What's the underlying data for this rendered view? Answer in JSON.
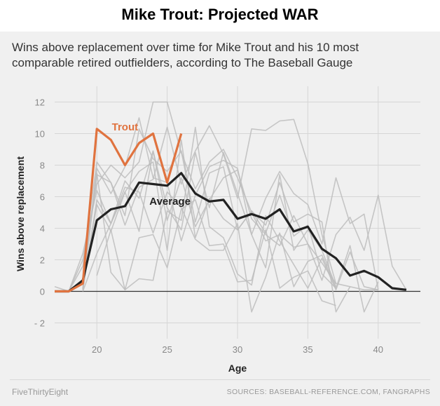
{
  "page": {
    "title": "Mike Trout: Projected WAR"
  },
  "chart_data": {
    "type": "line",
    "subtitle_lines": [
      "Wins above replacement over time for Mike Trout and his 10 most",
      "comparable retired outfielders, according to The Baseball Gauge"
    ],
    "xlabel": "Age",
    "ylabel": "Wins above replacement",
    "xlim": [
      17,
      43
    ],
    "ylim": [
      -3,
      13
    ],
    "x_ticks": [
      20,
      25,
      30,
      35,
      40
    ],
    "y_ticks": [
      -2,
      0,
      2,
      4,
      6,
      8,
      10,
      12
    ],
    "y_tick_labels": [
      "- 2",
      "0",
      "2",
      "4",
      "6",
      "8",
      "10",
      "12"
    ],
    "grid": true,
    "colors": {
      "trout": "#e0733f",
      "average": "#222222",
      "comparables": "#bdbdbd",
      "zero_line": "#333333",
      "grid": "#d6d6d6"
    },
    "series": [
      {
        "name": "Trout",
        "label": "Trout",
        "label_at": [
          22,
          10.2
        ],
        "x": [
          17,
          18,
          19,
          20,
          21,
          22,
          23,
          24,
          25,
          26
        ],
        "y": [
          0,
          0,
          0.5,
          10.3,
          9.6,
          8.0,
          9.4,
          10.0,
          6.9,
          10.0
        ]
      },
      {
        "name": "Average",
        "label": "Average",
        "label_at": [
          25.2,
          5.5
        ],
        "x": [
          17,
          18,
          19,
          20,
          21,
          22,
          23,
          24,
          25,
          26,
          27,
          28,
          29,
          30,
          31,
          32,
          33,
          34,
          35,
          36,
          37,
          38,
          39,
          40,
          41,
          42
        ],
        "y": [
          0,
          0,
          0.7,
          4.5,
          5.2,
          5.4,
          6.9,
          6.8,
          6.7,
          7.5,
          6.2,
          5.7,
          5.8,
          4.6,
          4.9,
          4.6,
          5.2,
          3.8,
          4.1,
          2.7,
          2.1,
          1.0,
          1.3,
          0.9,
          0.2,
          0.1
        ]
      },
      {
        "name": "",
        "x": [
          17,
          18,
          19,
          20,
          21,
          22,
          23,
          24,
          25,
          26,
          27,
          28,
          29,
          30,
          31,
          32,
          33,
          34,
          35,
          36,
          37,
          38,
          39,
          40
        ],
        "y": [
          0.3,
          0,
          2.0,
          6.8,
          8.0,
          7.2,
          8.2,
          12.0,
          12.0,
          8.8,
          6.5,
          8.2,
          9.0,
          7.2,
          5.0,
          3.2,
          3.6,
          2.8,
          3.0,
          1.8,
          0.5,
          0.3,
          0.1,
          0.1
        ]
      },
      {
        "name": "",
        "x": [
          18,
          19,
          20,
          21,
          22,
          23,
          24,
          25,
          26,
          27,
          28,
          29,
          30,
          31,
          32,
          33,
          34,
          35,
          36,
          37
        ],
        "y": [
          0,
          1.6,
          8.2,
          6.9,
          4.2,
          6.6,
          7.1,
          10.4,
          6.8,
          8.9,
          10.5,
          8.7,
          5.9,
          10.3,
          10.2,
          10.8,
          10.9,
          8.1,
          3.6,
          0.5
        ]
      },
      {
        "name": "",
        "x": [
          19,
          20,
          21,
          22,
          23,
          24,
          25,
          26,
          27,
          28,
          29,
          30,
          31,
          32,
          33,
          34,
          35,
          36,
          37,
          38,
          39,
          40
        ],
        "y": [
          0.2,
          7.8,
          6.2,
          7.9,
          11.0,
          7.2,
          6.9,
          3.2,
          6.1,
          7.9,
          8.3,
          7.8,
          3.6,
          5.9,
          7.6,
          6.2,
          5.5,
          3.0,
          7.2,
          4.3,
          4.9,
          0.1
        ]
      },
      {
        "name": "",
        "x": [
          18,
          19,
          20,
          21,
          22,
          23,
          24,
          25,
          26,
          27,
          28,
          29,
          30,
          31,
          32,
          33,
          34,
          35,
          36,
          37,
          38,
          39,
          40,
          41,
          42
        ],
        "y": [
          0,
          2.4,
          6.4,
          4.3,
          7.0,
          5.9,
          8.9,
          4.5,
          7.2,
          4.1,
          5.8,
          7.2,
          7.7,
          4.6,
          3.6,
          2.9,
          4.8,
          3.0,
          0.7,
          3.6,
          4.7,
          2.6,
          6.1,
          1.6,
          0.1
        ]
      },
      {
        "name": "",
        "x": [
          19,
          20,
          21,
          22,
          23,
          24,
          25,
          26,
          27,
          28,
          29,
          30,
          31,
          32,
          33,
          34,
          35,
          36,
          37
        ],
        "y": [
          0,
          2.4,
          4.3,
          6.3,
          3.8,
          8.9,
          5.3,
          3.9,
          8.8,
          5.3,
          8.8,
          6.2,
          3.6,
          1.5,
          7.4,
          2.6,
          3.9,
          2.6,
          0.3
        ]
      },
      {
        "name": "",
        "x": [
          19,
          20,
          21,
          22,
          23,
          24,
          25,
          26,
          27,
          28,
          29,
          30,
          31,
          32,
          33,
          34,
          35,
          36,
          37
        ],
        "y": [
          0.1,
          5.5,
          3.8,
          6.3,
          7.6,
          8.2,
          2.6,
          9.6,
          3.4,
          5.9,
          4.6,
          3.9,
          5.1,
          3.7,
          6.1,
          3.5,
          4.2,
          1.1,
          0.2
        ]
      },
      {
        "name": "",
        "x": [
          20,
          21,
          22,
          23,
          24,
          25,
          26,
          27,
          28,
          29,
          30,
          31,
          32,
          33,
          34,
          35,
          36,
          37,
          38,
          39,
          40
        ],
        "y": [
          1.0,
          3.9,
          0.1,
          0.8,
          0.7,
          5.1,
          4.5,
          10.4,
          4.1,
          3.4,
          1.1,
          0.4,
          4.8,
          3.2,
          1.7,
          0.2,
          2.1,
          0.1,
          2.5,
          0.3,
          0.1
        ]
      },
      {
        "name": "",
        "x": [
          19,
          20,
          21,
          22,
          23,
          24,
          25,
          26,
          27,
          28,
          29,
          30,
          31,
          32,
          33,
          34,
          35,
          36,
          37,
          38,
          39,
          40
        ],
        "y": [
          0.1,
          5.8,
          4.3,
          6.6,
          6.3,
          3.7,
          6.3,
          5.3,
          3.3,
          2.6,
          2.6,
          4.3,
          -1.3,
          0.9,
          3.7,
          0.3,
          1.9,
          2.3,
          0.2,
          2.9,
          -1.3,
          0.6
        ]
      },
      {
        "name": "",
        "x": [
          19,
          20,
          21,
          22,
          23,
          24,
          25,
          26,
          27,
          28,
          29,
          30,
          31,
          32,
          33,
          34,
          35,
          36,
          37
        ],
        "y": [
          0.8,
          7.5,
          1.2,
          0.1,
          3.4,
          3.6,
          1.5,
          5.2,
          5.8,
          2.9,
          3.0,
          0.6,
          0.7,
          3.9,
          0.2,
          0.9,
          1.3,
          -0.6,
          -0.9
        ]
      },
      {
        "name": "",
        "x": [
          19,
          20,
          21,
          22,
          23,
          24,
          25,
          26,
          27,
          28,
          29,
          30,
          31,
          32,
          33,
          34,
          35,
          36,
          37,
          38
        ],
        "y": [
          0.1,
          7.4,
          6.9,
          4.8,
          10.3,
          8.4,
          7.6,
          8.9,
          4.4,
          7.5,
          7.9,
          3.9,
          5.1,
          4.2,
          6.9,
          4.4,
          4.9,
          4.4,
          -1.3,
          0.3
        ]
      }
    ]
  },
  "footer": {
    "source_left": "FiveThirtyEight",
    "source_right": "SOURCES: BASEBALL-REFERENCE.COM, FANGRAPHS"
  }
}
